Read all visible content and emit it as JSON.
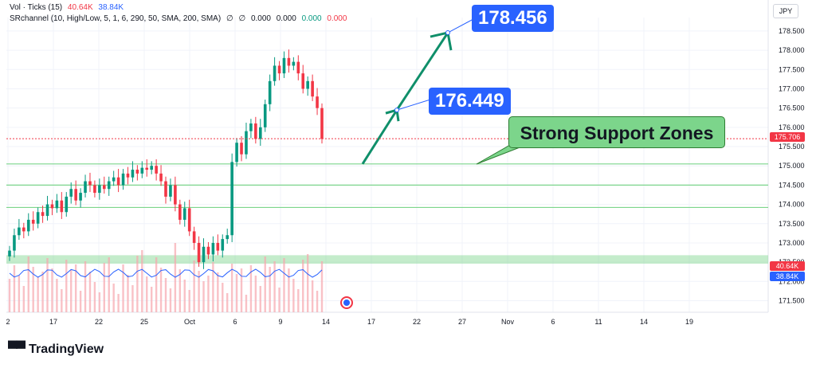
{
  "legend": {
    "vol_label": "Vol · Ticks (15)",
    "vol_up": "40.64K",
    "vol_down": "38.84K",
    "sr_label": "SRchannel (10, High/Low, 5, 1, 6, 290, 50, SMA, 200, SMA)",
    "sr_vals": [
      "∅",
      "∅",
      "0.000",
      "0.000",
      "0.000",
      "0.000"
    ]
  },
  "currency": "JPY",
  "callouts": {
    "target_high": "178.456",
    "target_mid": "176.449",
    "support": "Strong Support Zones"
  },
  "price_tags": {
    "last": "175.706",
    "vol_up": "40.64K",
    "vol_down": "38.84K"
  },
  "brand": "TradingView",
  "colors": {
    "up": "#089981",
    "down": "#f23645",
    "accent": "#2962ff",
    "support": "#7cd58b"
  },
  "chart_data": {
    "type": "candlestick",
    "y_ticks": [
      "178.500",
      "178.000",
      "177.500",
      "177.000",
      "176.500",
      "176.000",
      "175.500",
      "175.000",
      "174.500",
      "174.000",
      "173.500",
      "173.000",
      "172.500",
      "172.000",
      "171.500"
    ],
    "x_ticks": [
      "2",
      "17",
      "22",
      "25",
      "Oct",
      "6",
      "9",
      "14",
      "17",
      "22",
      "27",
      "Nov",
      "6",
      "11",
      "14",
      "19"
    ],
    "ylim": [
      171.2,
      178.85
    ],
    "support_lines": [
      175.05,
      174.5,
      173.92
    ],
    "support_zone": [
      172.46,
      172.68
    ],
    "last_price": 175.706,
    "projection": [
      [
        175.05,
        176.449
      ],
      [
        176.449,
        178.456
      ]
    ],
    "closes": [
      172.8,
      173.2,
      173.4,
      173.3,
      173.6,
      173.5,
      173.8,
      173.7,
      174.0,
      173.9,
      174.1,
      173.8,
      174.2,
      174.4,
      174.1,
      174.3,
      174.6,
      174.5,
      174.3,
      174.5,
      174.4,
      174.6,
      174.7,
      174.5,
      174.8,
      174.7,
      174.9,
      174.8,
      174.95,
      174.9,
      175.0,
      174.8,
      174.6,
      174.2,
      174.5,
      174.0,
      173.6,
      173.9,
      173.3,
      173.0,
      172.5,
      172.9,
      172.7,
      173.0,
      172.8,
      173.1,
      173.2,
      175.1,
      175.6,
      175.3,
      175.9,
      176.1,
      175.7,
      176.0,
      176.6,
      177.2,
      177.6,
      177.4,
      177.8,
      177.6,
      177.7,
      177.4,
      177.0,
      177.2,
      176.8,
      176.5,
      175.7
    ]
  }
}
